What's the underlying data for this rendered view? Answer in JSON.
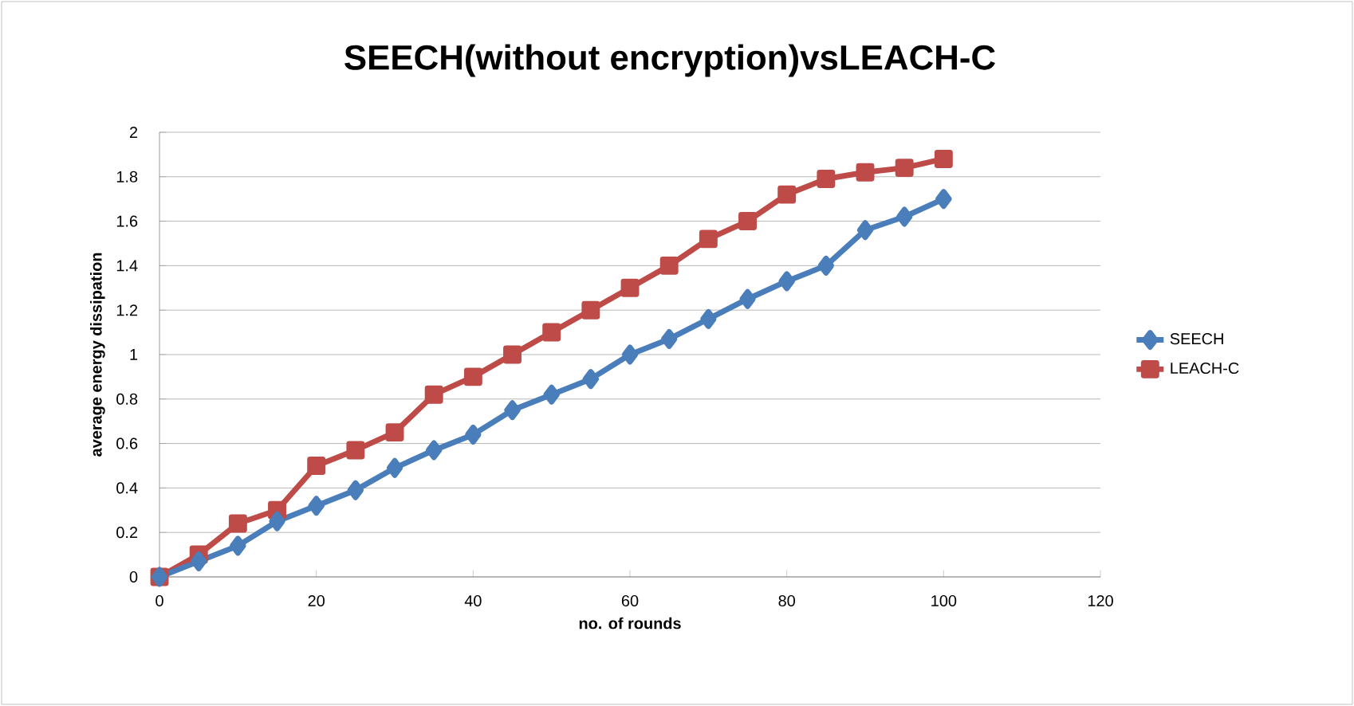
{
  "chart_data": {
    "type": "line",
    "title": "SEECH(without encryption)vsLEACH-C",
    "xlabel": "no. of rounds",
    "ylabel": "average energy dissipation",
    "x": [
      0,
      5,
      10,
      15,
      20,
      25,
      30,
      35,
      40,
      45,
      50,
      55,
      60,
      65,
      70,
      75,
      80,
      85,
      90,
      95,
      100
    ],
    "series": [
      {
        "name": "SEECH",
        "color": "#4a7ebb",
        "marker": "diamond",
        "values": [
          0,
          0.07,
          0.14,
          0.25,
          0.32,
          0.39,
          0.49,
          0.57,
          0.64,
          0.75,
          0.82,
          0.89,
          1.0,
          1.07,
          1.16,
          1.25,
          1.33,
          1.4,
          1.56,
          1.62,
          1.7
        ]
      },
      {
        "name": "LEACH-C",
        "color": "#be4b48",
        "marker": "square",
        "values": [
          0,
          0.1,
          0.24,
          0.3,
          0.5,
          0.57,
          0.65,
          0.82,
          0.9,
          1.0,
          1.1,
          1.2,
          1.3,
          1.4,
          1.52,
          1.6,
          1.72,
          1.79,
          1.82,
          1.84,
          1.88
        ]
      }
    ],
    "xlim": [
      0,
      120
    ],
    "xticks": [
      0,
      20,
      40,
      60,
      80,
      100,
      120
    ],
    "ylim": [
      0,
      2
    ],
    "yticks": [
      0,
      0.2,
      0.4,
      0.6,
      0.8,
      1,
      1.2,
      1.4,
      1.6,
      1.8,
      2
    ],
    "grid": "y",
    "legend": "right",
    "line_style": "solid"
  }
}
